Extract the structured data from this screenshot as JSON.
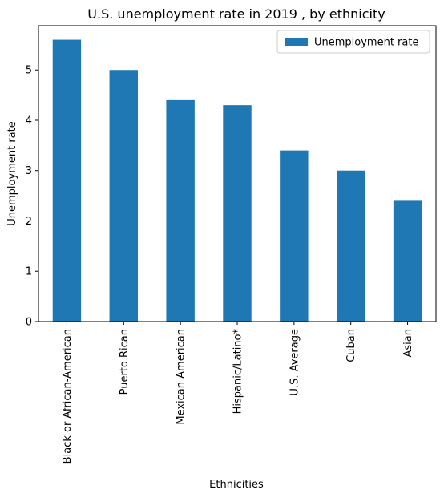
{
  "chart_data": {
    "type": "bar",
    "title": "U.S. unemployment rate in 2019 , by ethnicity",
    "xlabel": "Ethnicities",
    "ylabel": "Unemployment rate",
    "categories": [
      "Black or African-American",
      "Puerto Rican",
      "Mexican American",
      "Hispanic/Latino*",
      "U.S. Average",
      "Cuban",
      "Asian"
    ],
    "series": [
      {
        "name": "Unemployment rate",
        "values": [
          5.6,
          5.0,
          4.4,
          4.3,
          3.4,
          3.0,
          2.4
        ],
        "color": "#1f77b4"
      }
    ],
    "ylim": [
      0,
      5.88
    ],
    "yticks": [
      "0",
      "1",
      "2",
      "3",
      "4",
      "5"
    ],
    "grid": false,
    "legend": "top-right"
  }
}
